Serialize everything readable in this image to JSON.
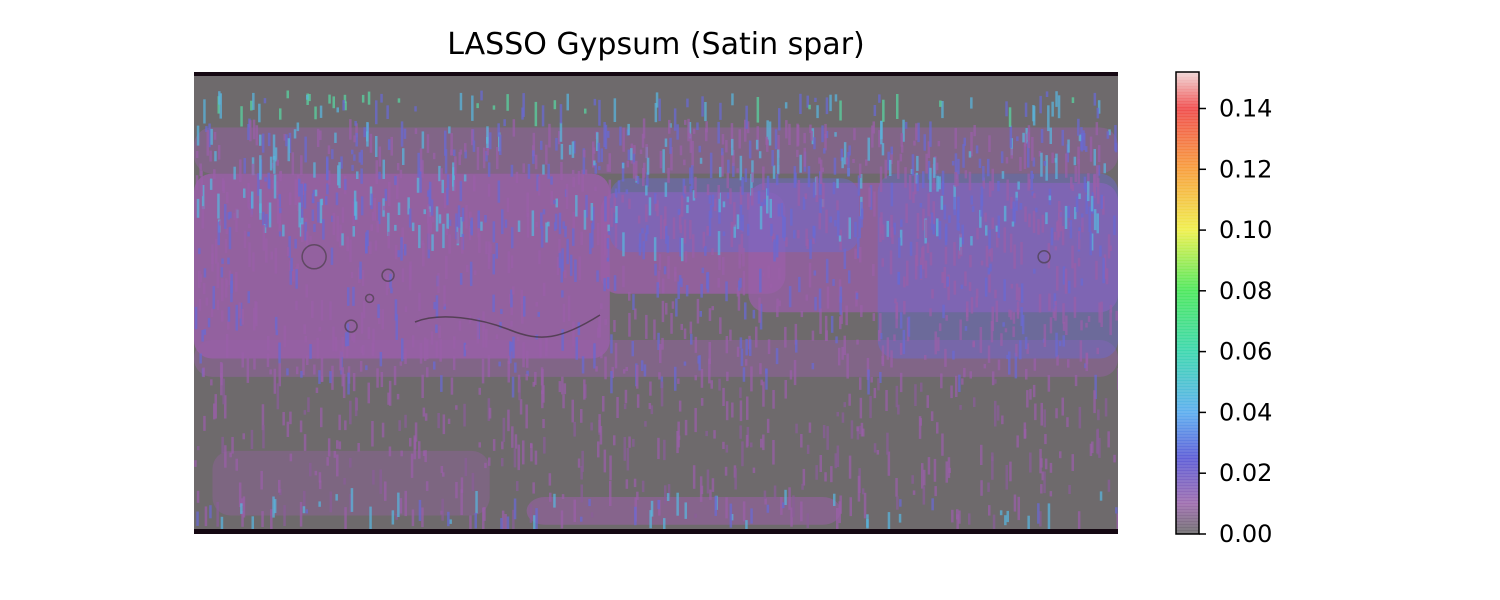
{
  "chart_data": {
    "type": "heatmap",
    "title": "LASSO Gypsum (Satin spar)",
    "xlabel": "",
    "ylabel": "",
    "axes_visible": false,
    "colorbar": {
      "orientation": "vertical",
      "position": "right",
      "range": [
        0.0,
        0.152
      ],
      "ticks": [
        0.0,
        0.02,
        0.04,
        0.06,
        0.08,
        0.1,
        0.12,
        0.14
      ],
      "tick_labels": [
        "0.00",
        "0.02",
        "0.04",
        "0.06",
        "0.08",
        "0.10",
        "0.12",
        "0.14"
      ],
      "colormap_stops": [
        {
          "value": 0.0,
          "color": "#707070"
        },
        {
          "value": 0.01,
          "color": "#a070b0"
        },
        {
          "value": 0.025,
          "color": "#6060d8"
        },
        {
          "value": 0.04,
          "color": "#60b0f0"
        },
        {
          "value": 0.06,
          "color": "#40d8b0"
        },
        {
          "value": 0.08,
          "color": "#50e860"
        },
        {
          "value": 0.1,
          "color": "#f0f050"
        },
        {
          "value": 0.12,
          "color": "#f8a040"
        },
        {
          "value": 0.14,
          "color": "#f05050"
        },
        {
          "value": 0.152,
          "color": "#f0d8d8"
        }
      ]
    },
    "background": "Mars shaded-relief map (equirectangular)"
  },
  "colors": {
    "base_gray": "#6e6a6c",
    "purple": "#9a5fa8",
    "blue": "#6a6ad2",
    "teal": "#5ab4dc",
    "green": "#5ad4a0",
    "frame_edge": "#150812"
  }
}
